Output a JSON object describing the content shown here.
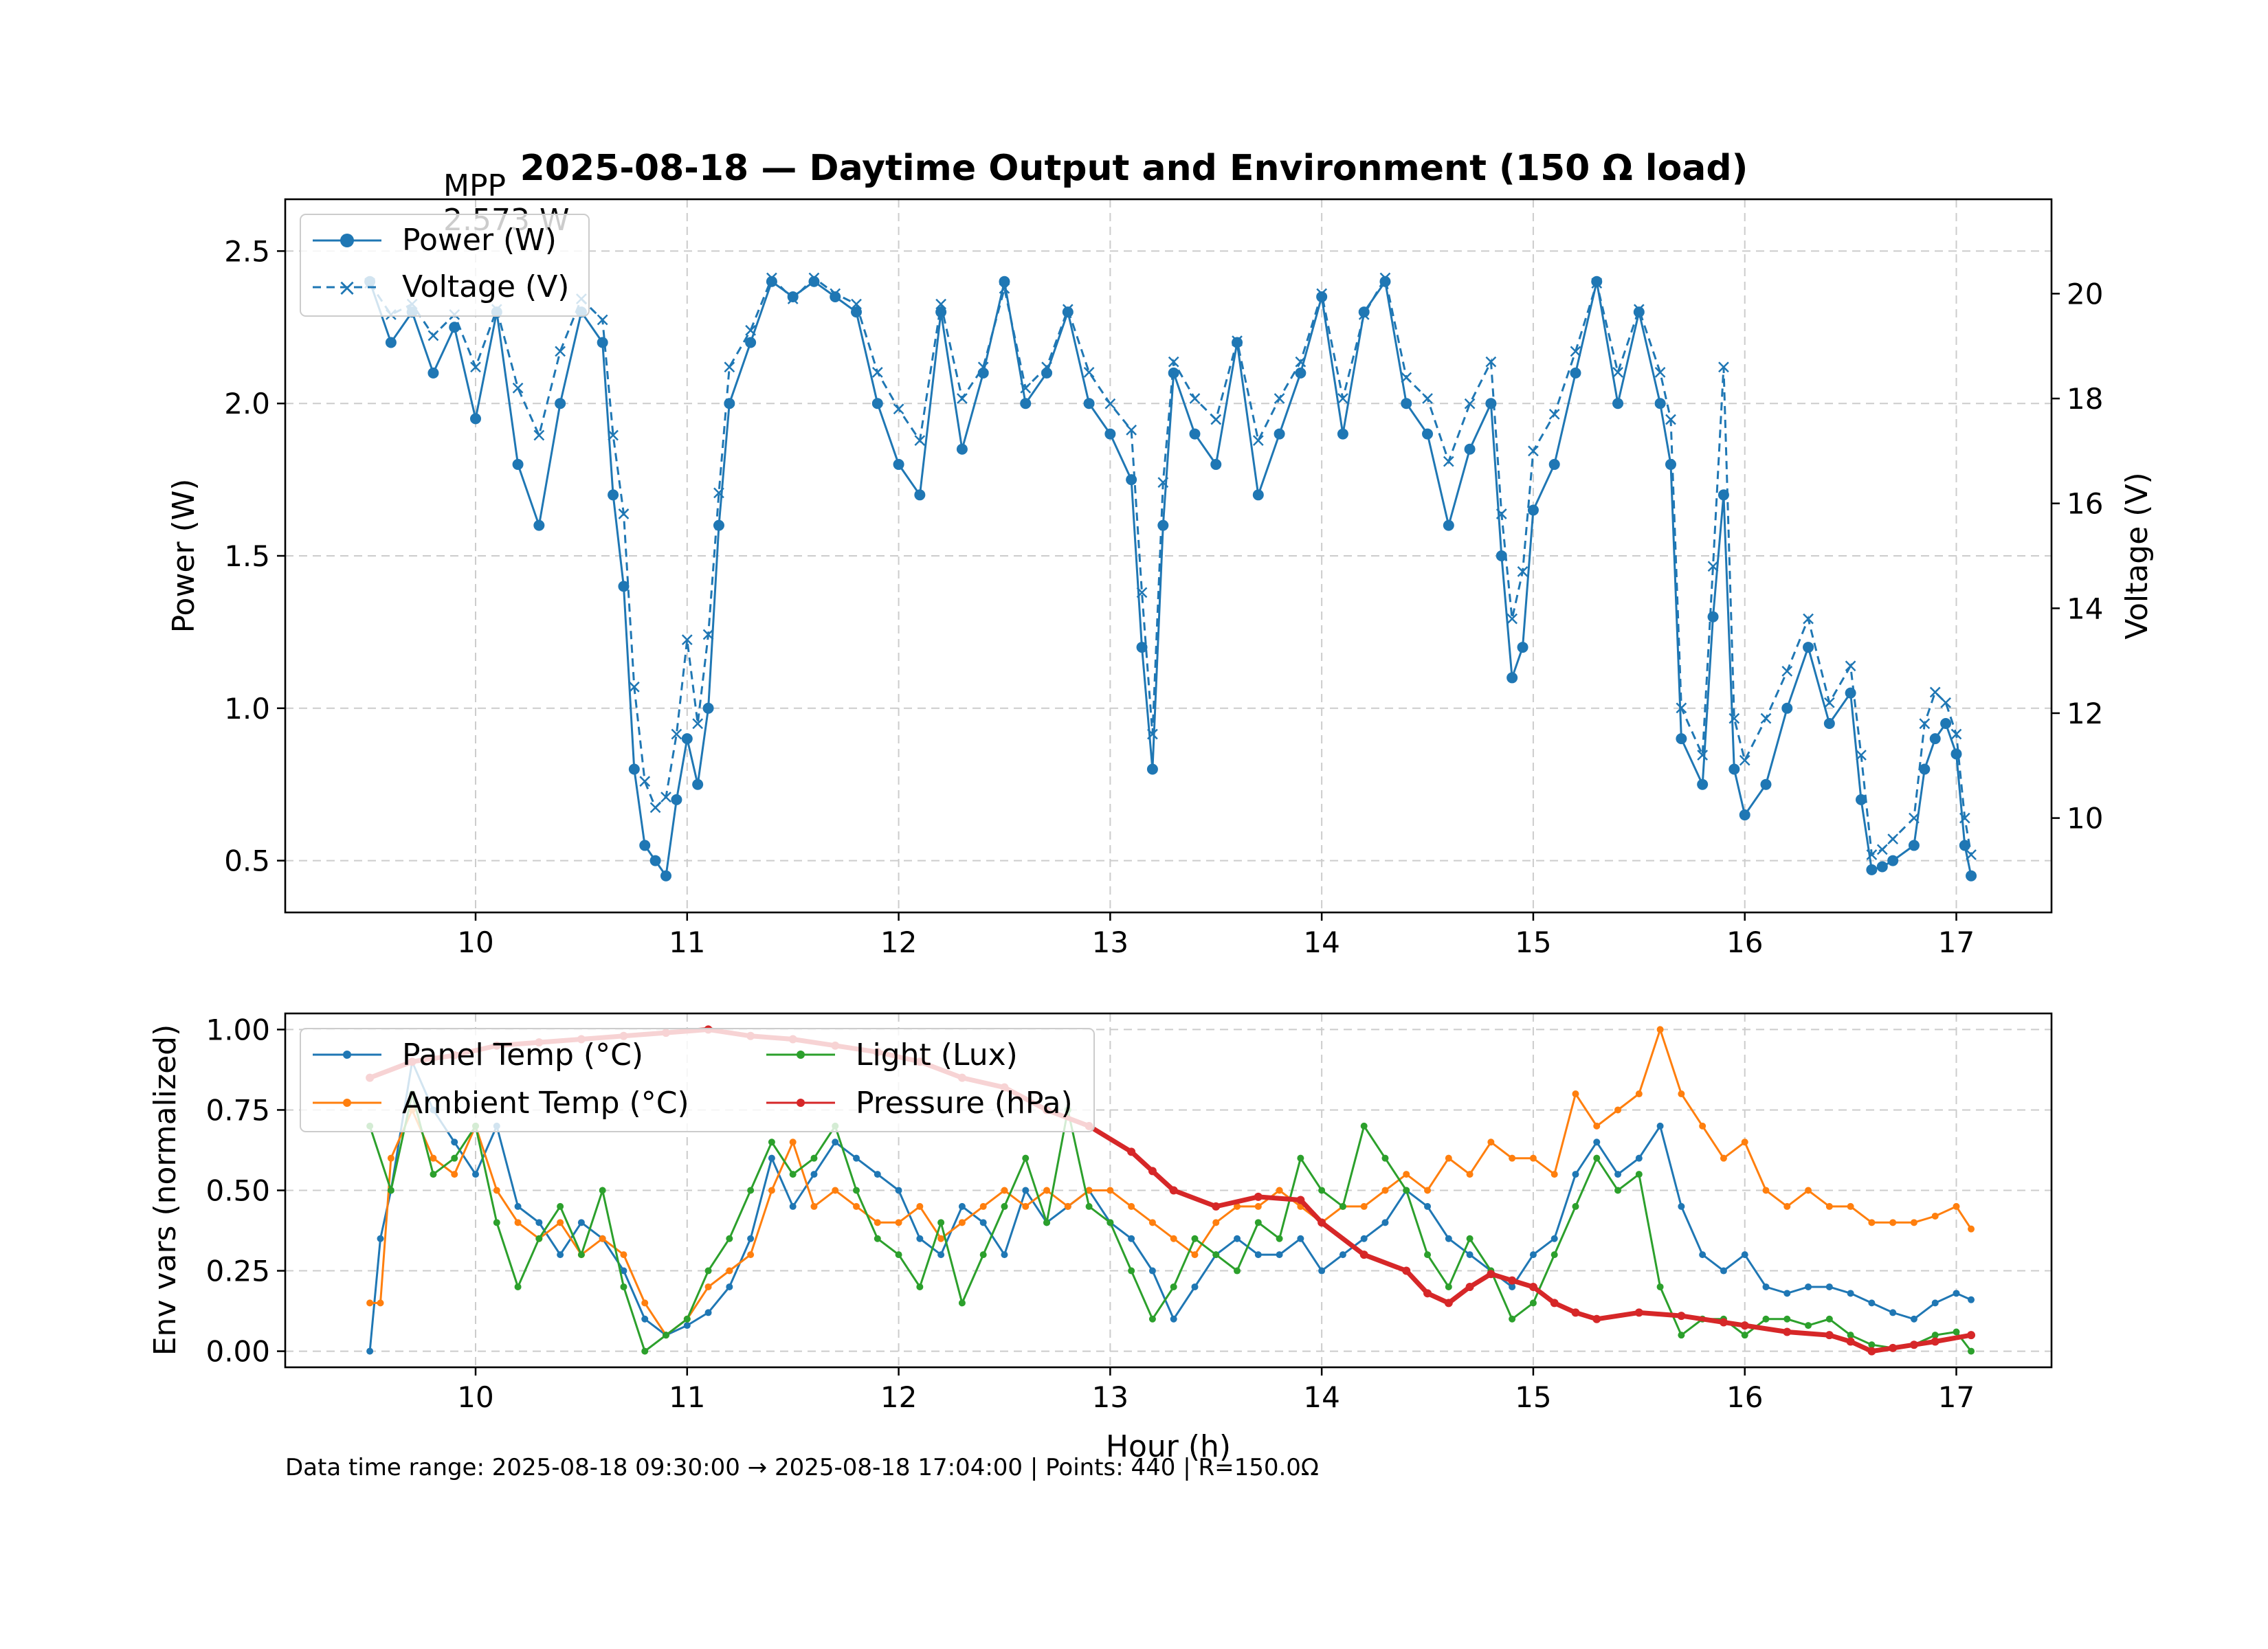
{
  "chart_data": [
    {
      "type": "line",
      "title": "2025-08-18 — Daytime Output and Environment (150 Ω load)",
      "xlabel": "",
      "ylabel": "Power (W)",
      "ylabel_right": "Voltage (V)",
      "xlim": [
        9.1,
        17.45
      ],
      "ylim": [
        0.33,
        2.67
      ],
      "ylim_right": [
        8.2,
        21.8
      ],
      "xticks": [
        10,
        11,
        12,
        13,
        14,
        15,
        16,
        17
      ],
      "yticks": [
        0.5,
        1.0,
        1.5,
        2.0,
        2.5
      ],
      "yticks_right": [
        10,
        12,
        14,
        16,
        18,
        20
      ],
      "grid": true,
      "legend": "top-left",
      "annotation": {
        "text": "MPP\n2.573 W",
        "x": 9.7,
        "y": 2.573
      },
      "series": [
        {
          "name": "Power (W)",
          "axis": "left",
          "color": "#1f77b4",
          "marker": "circle",
          "linestyle": "solid",
          "x": [
            9.5,
            9.6,
            9.7,
            9.8,
            9.9,
            10.0,
            10.1,
            10.2,
            10.3,
            10.4,
            10.5,
            10.6,
            10.65,
            10.7,
            10.75,
            10.8,
            10.85,
            10.9,
            10.95,
            11.0,
            11.05,
            11.1,
            11.15,
            11.2,
            11.3,
            11.4,
            11.5,
            11.6,
            11.7,
            11.8,
            11.9,
            12.0,
            12.1,
            12.2,
            12.3,
            12.4,
            12.5,
            12.6,
            12.7,
            12.8,
            12.9,
            13.0,
            13.1,
            13.15,
            13.2,
            13.25,
            13.3,
            13.4,
            13.5,
            13.6,
            13.7,
            13.8,
            13.9,
            14.0,
            14.1,
            14.2,
            14.3,
            14.4,
            14.5,
            14.6,
            14.7,
            14.8,
            14.85,
            14.9,
            14.95,
            15.0,
            15.1,
            15.2,
            15.3,
            15.4,
            15.5,
            15.6,
            15.65,
            15.7,
            15.8,
            15.85,
            15.9,
            15.95,
            16.0,
            16.1,
            16.2,
            16.3,
            16.4,
            16.5,
            16.55,
            16.6,
            16.65,
            16.7,
            16.8,
            16.85,
            16.9,
            16.95,
            17.0,
            17.04,
            17.07
          ],
          "y": [
            2.4,
            2.2,
            2.3,
            2.1,
            2.25,
            1.95,
            2.3,
            1.8,
            1.6,
            2.0,
            2.3,
            2.2,
            1.7,
            1.4,
            0.8,
            0.55,
            0.5,
            0.45,
            0.7,
            0.9,
            0.75,
            1.0,
            1.6,
            2.0,
            2.2,
            2.4,
            2.35,
            2.4,
            2.35,
            2.3,
            2.0,
            1.8,
            1.7,
            2.3,
            1.85,
            2.1,
            2.4,
            2.0,
            2.1,
            2.3,
            2.0,
            1.9,
            1.75,
            1.2,
            0.8,
            1.6,
            2.1,
            1.9,
            1.8,
            2.2,
            1.7,
            1.9,
            2.1,
            2.35,
            1.9,
            2.3,
            2.4,
            2.0,
            1.9,
            1.6,
            1.85,
            2.0,
            1.5,
            1.1,
            1.2,
            1.65,
            1.8,
            2.1,
            2.4,
            2.0,
            2.3,
            2.0,
            1.8,
            0.9,
            0.75,
            1.3,
            1.7,
            0.8,
            0.65,
            0.75,
            1.0,
            1.2,
            0.95,
            1.05,
            0.7,
            0.47,
            0.48,
            0.5,
            0.55,
            0.8,
            0.9,
            0.95,
            0.85,
            0.55,
            0.45
          ]
        },
        {
          "name": "Voltage (V)",
          "axis": "right",
          "color": "#1f77b4",
          "marker": "x",
          "linestyle": "dashed",
          "x": [
            9.5,
            9.6,
            9.7,
            9.8,
            9.9,
            10.0,
            10.1,
            10.2,
            10.3,
            10.4,
            10.5,
            10.6,
            10.65,
            10.7,
            10.75,
            10.8,
            10.85,
            10.9,
            10.95,
            11.0,
            11.05,
            11.1,
            11.15,
            11.2,
            11.3,
            11.4,
            11.5,
            11.6,
            11.7,
            11.8,
            11.9,
            12.0,
            12.1,
            12.2,
            12.3,
            12.4,
            12.5,
            12.6,
            12.7,
            12.8,
            12.9,
            13.0,
            13.1,
            13.15,
            13.2,
            13.25,
            13.3,
            13.4,
            13.5,
            13.6,
            13.7,
            13.8,
            13.9,
            14.0,
            14.1,
            14.2,
            14.3,
            14.4,
            14.5,
            14.6,
            14.7,
            14.8,
            14.85,
            14.9,
            14.95,
            15.0,
            15.1,
            15.2,
            15.3,
            15.4,
            15.5,
            15.6,
            15.65,
            15.7,
            15.8,
            15.85,
            15.9,
            15.95,
            16.0,
            16.1,
            16.2,
            16.3,
            16.4,
            16.5,
            16.55,
            16.6,
            16.65,
            16.7,
            16.8,
            16.85,
            16.9,
            16.95,
            17.0,
            17.04,
            17.07
          ],
          "y": [
            20.2,
            19.6,
            19.8,
            19.2,
            19.6,
            18.6,
            19.7,
            18.2,
            17.3,
            18.9,
            19.9,
            19.5,
            17.3,
            15.8,
            12.5,
            10.7,
            10.2,
            10.4,
            11.6,
            13.4,
            11.8,
            13.5,
            16.2,
            18.6,
            19.3,
            20.3,
            19.9,
            20.3,
            20.0,
            19.8,
            18.5,
            17.8,
            17.2,
            19.8,
            18.0,
            18.6,
            20.1,
            18.2,
            18.6,
            19.7,
            18.5,
            17.9,
            17.4,
            14.3,
            11.6,
            16.4,
            18.7,
            18.0,
            17.6,
            19.1,
            17.2,
            18.0,
            18.7,
            20.0,
            18.0,
            19.6,
            20.3,
            18.4,
            18.0,
            16.8,
            17.9,
            18.7,
            15.8,
            13.8,
            14.7,
            17.0,
            17.7,
            18.9,
            20.2,
            18.5,
            19.7,
            18.5,
            17.6,
            12.1,
            11.2,
            14.8,
            18.6,
            11.9,
            11.1,
            11.9,
            12.8,
            13.8,
            12.2,
            12.9,
            11.2,
            9.3,
            9.4,
            9.6,
            10.0,
            11.8,
            12.4,
            12.2,
            11.6,
            10.0,
            9.3
          ]
        }
      ]
    },
    {
      "type": "line",
      "title": "",
      "xlabel": "Hour (h)",
      "ylabel": "Env vars (normalized)",
      "xlim": [
        9.1,
        17.45
      ],
      "ylim": [
        -0.05,
        1.05
      ],
      "xticks": [
        10,
        11,
        12,
        13,
        14,
        15,
        16,
        17
      ],
      "yticks": [
        0.0,
        0.25,
        0.5,
        0.75,
        1.0
      ],
      "ytick_labels": [
        "0.00",
        "0.25",
        "0.50",
        "0.75",
        "1.00"
      ],
      "grid": true,
      "legend": "top-left",
      "series": [
        {
          "name": "Panel Temp (°C)",
          "color": "#1f77b4",
          "x": [
            9.5,
            9.55,
            9.6,
            9.7,
            9.8,
            9.9,
            10.0,
            10.1,
            10.2,
            10.3,
            10.4,
            10.5,
            10.6,
            10.7,
            10.8,
            10.9,
            11.0,
            11.1,
            11.2,
            11.3,
            11.4,
            11.5,
            11.6,
            11.7,
            11.8,
            11.9,
            12.0,
            12.1,
            12.2,
            12.3,
            12.4,
            12.5,
            12.6,
            12.7,
            12.8,
            12.9,
            13.0,
            13.1,
            13.2,
            13.3,
            13.4,
            13.5,
            13.6,
            13.7,
            13.8,
            13.9,
            14.0,
            14.1,
            14.2,
            14.3,
            14.4,
            14.5,
            14.6,
            14.7,
            14.8,
            14.9,
            15.0,
            15.1,
            15.2,
            15.3,
            15.4,
            15.5,
            15.6,
            15.7,
            15.8,
            15.9,
            16.0,
            16.1,
            16.2,
            16.3,
            16.4,
            16.5,
            16.6,
            16.7,
            16.8,
            16.9,
            17.0,
            17.07
          ],
          "y": [
            0.0,
            0.35,
            0.5,
            0.9,
            0.75,
            0.65,
            0.55,
            0.7,
            0.45,
            0.4,
            0.3,
            0.4,
            0.35,
            0.25,
            0.1,
            0.05,
            0.08,
            0.12,
            0.2,
            0.35,
            0.6,
            0.45,
            0.55,
            0.65,
            0.6,
            0.55,
            0.5,
            0.35,
            0.3,
            0.45,
            0.4,
            0.3,
            0.5,
            0.4,
            0.45,
            0.5,
            0.4,
            0.35,
            0.25,
            0.1,
            0.2,
            0.3,
            0.35,
            0.3,
            0.3,
            0.35,
            0.25,
            0.3,
            0.35,
            0.4,
            0.5,
            0.45,
            0.35,
            0.3,
            0.25,
            0.2,
            0.3,
            0.35,
            0.55,
            0.65,
            0.55,
            0.6,
            0.7,
            0.45,
            0.3,
            0.25,
            0.3,
            0.2,
            0.18,
            0.2,
            0.2,
            0.18,
            0.15,
            0.12,
            0.1,
            0.15,
            0.18,
            0.16
          ]
        },
        {
          "name": "Ambient Temp (°C)",
          "color": "#ff7f0e",
          "x": [
            9.5,
            9.55,
            9.6,
            9.7,
            9.8,
            9.9,
            10.0,
            10.1,
            10.2,
            10.3,
            10.4,
            10.5,
            10.6,
            10.7,
            10.8,
            10.9,
            11.0,
            11.1,
            11.2,
            11.3,
            11.4,
            11.5,
            11.6,
            11.7,
            11.8,
            11.9,
            12.0,
            12.1,
            12.2,
            12.3,
            12.4,
            12.5,
            12.6,
            12.7,
            12.8,
            12.9,
            13.0,
            13.1,
            13.2,
            13.3,
            13.4,
            13.5,
            13.6,
            13.7,
            13.8,
            13.9,
            14.0,
            14.1,
            14.2,
            14.3,
            14.4,
            14.5,
            14.6,
            14.7,
            14.8,
            14.9,
            15.0,
            15.1,
            15.2,
            15.3,
            15.4,
            15.5,
            15.6,
            15.7,
            15.8,
            15.9,
            16.0,
            16.1,
            16.2,
            16.3,
            16.4,
            16.5,
            16.6,
            16.7,
            16.8,
            16.9,
            17.0,
            17.07
          ],
          "y": [
            0.15,
            0.15,
            0.6,
            0.75,
            0.6,
            0.55,
            0.7,
            0.5,
            0.4,
            0.35,
            0.4,
            0.3,
            0.35,
            0.3,
            0.15,
            0.05,
            0.1,
            0.2,
            0.25,
            0.3,
            0.5,
            0.65,
            0.45,
            0.5,
            0.45,
            0.4,
            0.4,
            0.45,
            0.35,
            0.4,
            0.45,
            0.5,
            0.45,
            0.5,
            0.45,
            0.5,
            0.5,
            0.45,
            0.4,
            0.35,
            0.3,
            0.4,
            0.45,
            0.45,
            0.5,
            0.45,
            0.4,
            0.45,
            0.45,
            0.5,
            0.55,
            0.5,
            0.6,
            0.55,
            0.65,
            0.6,
            0.6,
            0.55,
            0.8,
            0.7,
            0.75,
            0.8,
            1.0,
            0.8,
            0.7,
            0.6,
            0.65,
            0.5,
            0.45,
            0.5,
            0.45,
            0.45,
            0.4,
            0.4,
            0.4,
            0.42,
            0.45,
            0.38
          ]
        },
        {
          "name": "Light (Lux)",
          "color": "#2ca02c",
          "x": [
            9.5,
            9.6,
            9.7,
            9.8,
            9.9,
            10.0,
            10.1,
            10.2,
            10.3,
            10.4,
            10.5,
            10.6,
            10.7,
            10.8,
            10.9,
            11.0,
            11.1,
            11.2,
            11.3,
            11.4,
            11.5,
            11.6,
            11.7,
            11.8,
            11.9,
            12.0,
            12.1,
            12.2,
            12.3,
            12.4,
            12.5,
            12.6,
            12.7,
            12.8,
            12.9,
            13.0,
            13.1,
            13.2,
            13.3,
            13.4,
            13.5,
            13.6,
            13.7,
            13.8,
            13.9,
            14.0,
            14.1,
            14.2,
            14.3,
            14.4,
            14.5,
            14.6,
            14.7,
            14.8,
            14.9,
            15.0,
            15.1,
            15.2,
            15.3,
            15.4,
            15.5,
            15.6,
            15.7,
            15.8,
            15.9,
            16.0,
            16.1,
            16.2,
            16.3,
            16.4,
            16.5,
            16.6,
            16.7,
            16.8,
            16.9,
            17.0,
            17.07
          ],
          "y": [
            0.7,
            0.5,
            0.8,
            0.55,
            0.6,
            0.7,
            0.4,
            0.2,
            0.35,
            0.45,
            0.3,
            0.5,
            0.2,
            0.0,
            0.05,
            0.1,
            0.25,
            0.35,
            0.5,
            0.65,
            0.55,
            0.6,
            0.7,
            0.5,
            0.35,
            0.3,
            0.2,
            0.4,
            0.15,
            0.3,
            0.45,
            0.6,
            0.4,
            0.75,
            0.45,
            0.4,
            0.25,
            0.1,
            0.2,
            0.35,
            0.3,
            0.25,
            0.4,
            0.35,
            0.6,
            0.5,
            0.45,
            0.7,
            0.6,
            0.5,
            0.3,
            0.2,
            0.35,
            0.25,
            0.1,
            0.15,
            0.3,
            0.45,
            0.6,
            0.5,
            0.55,
            0.2,
            0.05,
            0.1,
            0.1,
            0.05,
            0.1,
            0.1,
            0.08,
            0.1,
            0.05,
            0.02,
            0.01,
            0.02,
            0.05,
            0.06,
            0.0
          ]
        },
        {
          "name": "Pressure (hPa)",
          "color": "#d62728",
          "x": [
            9.5,
            9.7,
            9.9,
            10.1,
            10.3,
            10.5,
            10.7,
            10.9,
            11.1,
            11.3,
            11.5,
            11.7,
            11.9,
            12.1,
            12.3,
            12.5,
            12.7,
            12.9,
            13.1,
            13.2,
            13.3,
            13.5,
            13.7,
            13.9,
            14.0,
            14.2,
            14.4,
            14.5,
            14.6,
            14.7,
            14.8,
            14.9,
            15.0,
            15.1,
            15.2,
            15.3,
            15.5,
            15.7,
            15.9,
            16.0,
            16.2,
            16.4,
            16.5,
            16.6,
            16.7,
            16.8,
            16.9,
            17.07
          ],
          "y": [
            0.85,
            0.9,
            0.92,
            0.95,
            0.96,
            0.97,
            0.98,
            0.99,
            1.0,
            0.98,
            0.97,
            0.95,
            0.93,
            0.9,
            0.85,
            0.82,
            0.75,
            0.7,
            0.62,
            0.56,
            0.5,
            0.45,
            0.48,
            0.47,
            0.4,
            0.3,
            0.25,
            0.18,
            0.15,
            0.2,
            0.24,
            0.22,
            0.2,
            0.15,
            0.12,
            0.1,
            0.12,
            0.11,
            0.09,
            0.08,
            0.06,
            0.05,
            0.03,
            0.0,
            0.01,
            0.02,
            0.03,
            0.05
          ]
        }
      ],
      "footer": "Data time range: 2025-08-18 09:30:00 → 2025-08-18 17:04:00 | Points: 440 | R=150.0Ω"
    }
  ]
}
